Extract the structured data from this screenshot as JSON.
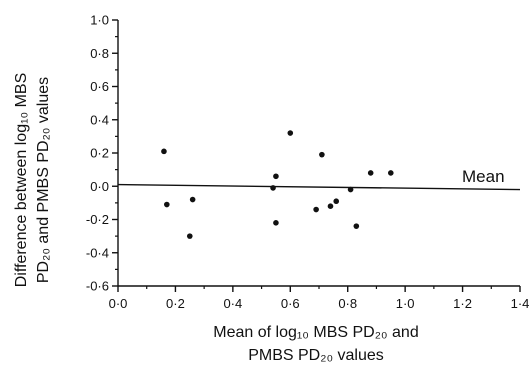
{
  "chart_data": {
    "type": "scatter",
    "x_ticks": [
      "0·0",
      "0·2",
      "0·4",
      "0·6",
      "0·8",
      "1·0",
      "1·2",
      "1·4"
    ],
    "y_ticks": [
      "1·0",
      "0·8",
      "0·6",
      "0·4",
      "0·2",
      "0·0",
      "-0·2",
      "-0·4",
      "-0·6"
    ],
    "xlim": [
      0.0,
      1.4
    ],
    "ylim": [
      -0.6,
      1.0
    ],
    "xlabel_line1": "Mean of log₁₀ MBS PD₂₀ and",
    "xlabel_line2": "PMBS PD₂₀ values",
    "ylabel_line1": "Difference between log₁₀ MBS",
    "ylabel_line2": "PD₂₀ and PMBS PD₂₀ values",
    "annotation": "Mean",
    "mean_line": {
      "x": [
        0.0,
        1.4
      ],
      "y": [
        0.01,
        -0.02
      ]
    },
    "points": [
      {
        "x": 0.16,
        "y": 0.21
      },
      {
        "x": 0.17,
        "y": -0.11
      },
      {
        "x": 0.25,
        "y": -0.3
      },
      {
        "x": 0.26,
        "y": -0.08
      },
      {
        "x": 0.54,
        "y": -0.01
      },
      {
        "x": 0.55,
        "y": 0.06
      },
      {
        "x": 0.55,
        "y": -0.22
      },
      {
        "x": 0.6,
        "y": 0.32
      },
      {
        "x": 0.69,
        "y": -0.14
      },
      {
        "x": 0.71,
        "y": 0.19
      },
      {
        "x": 0.74,
        "y": -0.12
      },
      {
        "x": 0.76,
        "y": -0.09
      },
      {
        "x": 0.81,
        "y": -0.02
      },
      {
        "x": 0.83,
        "y": -0.24
      },
      {
        "x": 0.88,
        "y": 0.08
      },
      {
        "x": 0.95,
        "y": 0.08
      }
    ]
  }
}
